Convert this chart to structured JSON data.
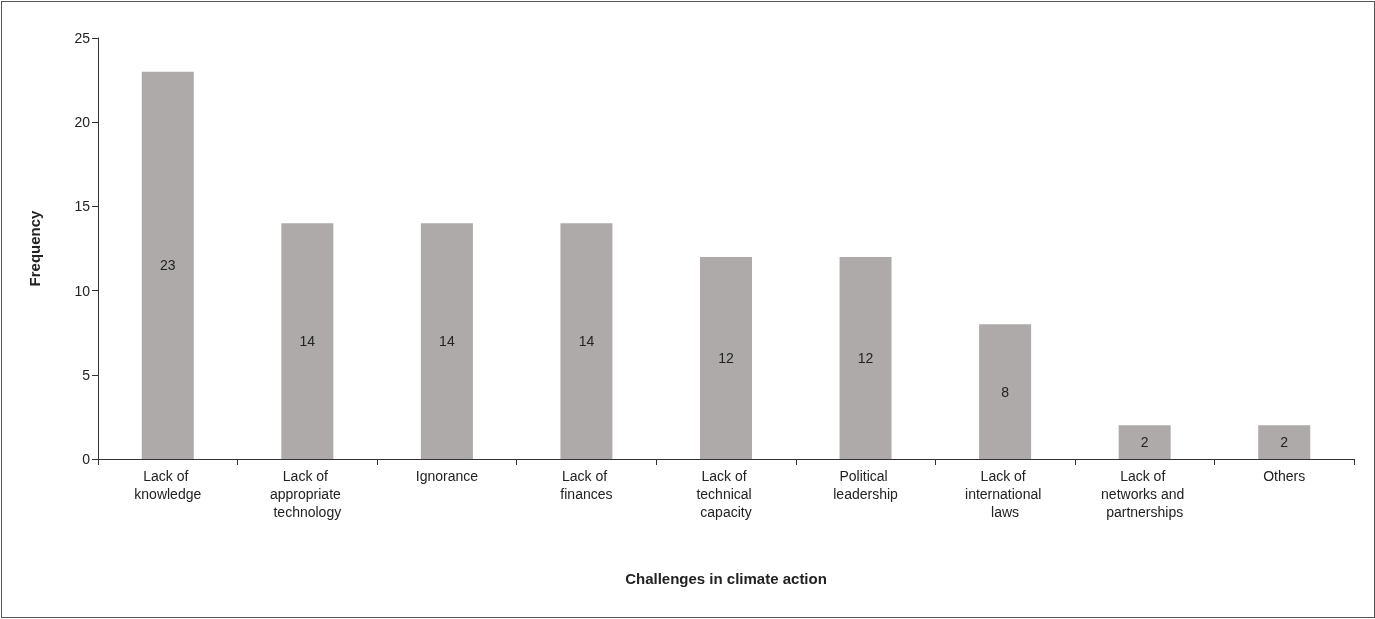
{
  "chart_data": {
    "type": "bar",
    "xlabel": "Challenges in climate action",
    "ylabel": "Frequency",
    "categories": [
      "Lack of knowledge",
      "Lack of appropriate technology",
      "Ignorance",
      "Lack of finances",
      "Lack of technical capacity",
      "Political leadership",
      "Lack of international laws",
      "Lack of networks and partnerships",
      "Others"
    ],
    "values": [
      23,
      14,
      14,
      14,
      12,
      12,
      8,
      2,
      2
    ],
    "color": "#aeaaaa",
    "ylim": [
      0,
      25
    ],
    "yticks": [
      0,
      5,
      10,
      15,
      20,
      25
    ],
    "grid": false,
    "data_labels": true
  }
}
